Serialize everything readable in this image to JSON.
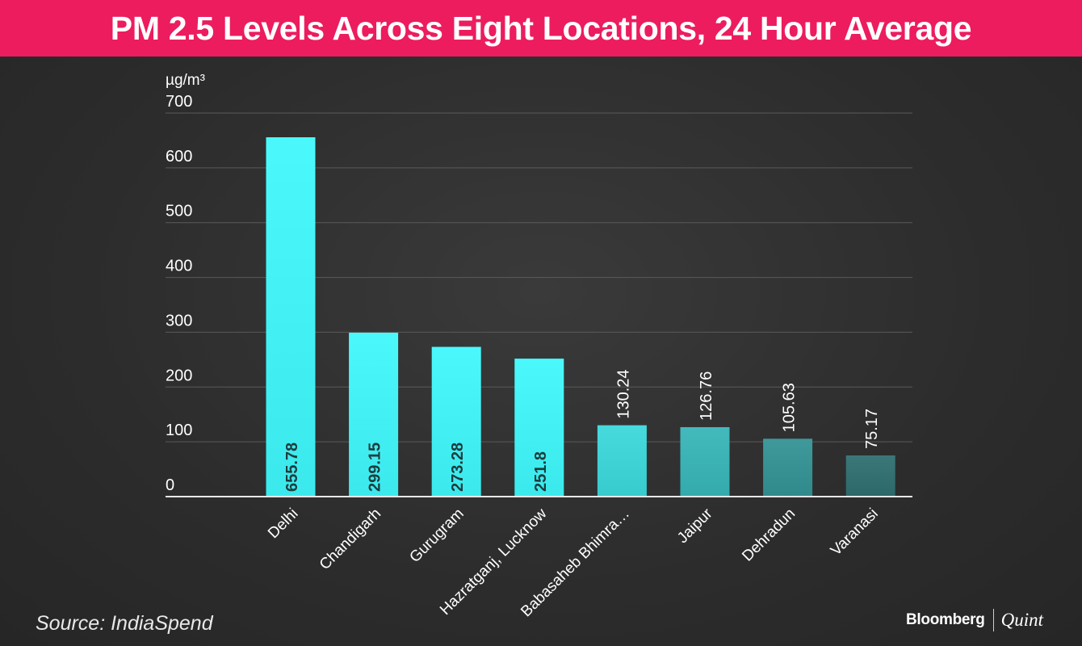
{
  "header": {
    "title": "PM 2.5 Levels Across Eight Locations, 24 Hour Average"
  },
  "footer": {
    "source": "Source: IndiaSpend",
    "brand_primary": "Bloomberg",
    "brand_secondary": "Quint"
  },
  "colors": {
    "title_bar": "#ec1c5f",
    "bar_bright": "#3ff8fc",
    "bar_dark": "#2f6e70",
    "gridline": "#5a5a5a"
  },
  "chart_data": {
    "type": "bar",
    "title": "PM 2.5 Levels Across Eight Locations, 24 Hour Average",
    "ylabel": "µg/m³",
    "xlabel": "",
    "ylim": [
      0,
      700
    ],
    "yticks": [
      0,
      100,
      200,
      300,
      400,
      500,
      600,
      700
    ],
    "grid": true,
    "legend": "none",
    "categories": [
      "Delhi",
      "Chandigarh",
      "Gurugram",
      "Hazratganj, Lucknow",
      "Babasaheb Bhimra…",
      "Jaipur",
      "Dehradun",
      "Varanasi"
    ],
    "values": [
      655.78,
      299.15,
      273.28,
      251.8,
      130.24,
      126.76,
      105.63,
      75.17
    ],
    "value_labels": [
      "655.78",
      "299.15",
      "273.28",
      "251.8",
      "130.24",
      "126.76",
      "105.63",
      "75.17"
    ]
  }
}
